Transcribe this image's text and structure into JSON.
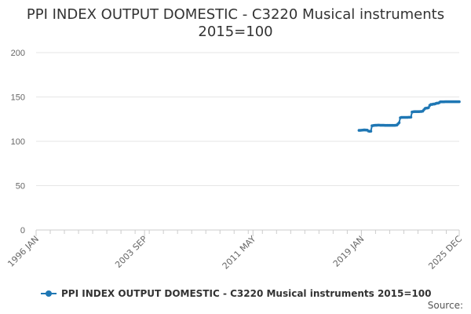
{
  "chart_data": {
    "type": "line",
    "title_lines": [
      "PPI INDEX OUTPUT DOMESTIC - C3220 Musical instruments",
      "2015=100"
    ],
    "ylim": [
      0,
      200
    ],
    "y_ticks": [
      0,
      50,
      100,
      150,
      200
    ],
    "x_range": [
      "1996-01",
      "2025-12"
    ],
    "x_ticks": [
      "1996 JAN",
      "2003 SEP",
      "2011 MAY",
      "2019 JAN",
      "2025 DEC"
    ],
    "grid": "horizontal",
    "legend_position": "bottom",
    "series": [
      {
        "name": "PPI INDEX OUTPUT DOMESTIC - C3220 Musical instruments 2015=100",
        "color": "#1f77b4",
        "points": [
          [
            "2018-11",
            112.3
          ],
          [
            "2018-12",
            112.4
          ],
          [
            "2019-01",
            112.5
          ],
          [
            "2019-02",
            112.6
          ],
          [
            "2019-03",
            112.8
          ],
          [
            "2019-04",
            112.8
          ],
          [
            "2019-05",
            112.7
          ],
          [
            "2019-06",
            112.6
          ],
          [
            "2019-07",
            111.5
          ],
          [
            "2019-08",
            111.3
          ],
          [
            "2019-09",
            111.4
          ],
          [
            "2019-10",
            117.5
          ],
          [
            "2019-11",
            117.8
          ],
          [
            "2019-12",
            118.0
          ],
          [
            "2020-01",
            118.1
          ],
          [
            "2020-02",
            118.1
          ],
          [
            "2020-03",
            118.2
          ],
          [
            "2020-04",
            118.2
          ],
          [
            "2020-05",
            118.1
          ],
          [
            "2020-06",
            118.1
          ],
          [
            "2020-07",
            118.1
          ],
          [
            "2020-08",
            118.1
          ],
          [
            "2020-09",
            118.0
          ],
          [
            "2020-10",
            118.0
          ],
          [
            "2020-11",
            118.0
          ],
          [
            "2020-12",
            118.0
          ],
          [
            "2021-01",
            118.0
          ],
          [
            "2021-02",
            118.0
          ],
          [
            "2021-03",
            118.0
          ],
          [
            "2021-04",
            118.0
          ],
          [
            "2021-05",
            118.0
          ],
          [
            "2021-06",
            118.1
          ],
          [
            "2021-07",
            118.3
          ],
          [
            "2021-08",
            119.5
          ],
          [
            "2021-09",
            121.0
          ],
          [
            "2021-10",
            126.5
          ],
          [
            "2021-11",
            127.0
          ],
          [
            "2021-12",
            127.0
          ],
          [
            "2022-01",
            127.0
          ],
          [
            "2022-02",
            127.0
          ],
          [
            "2022-03",
            127.0
          ],
          [
            "2022-04",
            127.0
          ],
          [
            "2022-05",
            127.1
          ],
          [
            "2022-06",
            127.1
          ],
          [
            "2022-07",
            127.2
          ],
          [
            "2022-08",
            133.0
          ],
          [
            "2022-09",
            133.3
          ],
          [
            "2022-10",
            133.5
          ],
          [
            "2022-11",
            133.5
          ],
          [
            "2022-12",
            133.5
          ],
          [
            "2023-01",
            133.5
          ],
          [
            "2023-02",
            133.5
          ],
          [
            "2023-03",
            133.6
          ],
          [
            "2023-04",
            133.6
          ],
          [
            "2023-05",
            134.0
          ],
          [
            "2023-06",
            135.5
          ],
          [
            "2023-07",
            137.0
          ],
          [
            "2023-08",
            137.5
          ],
          [
            "2023-09",
            137.5
          ],
          [
            "2023-10",
            138.0
          ],
          [
            "2023-11",
            140.5
          ],
          [
            "2023-12",
            141.5
          ],
          [
            "2024-01",
            141.5
          ],
          [
            "2024-02",
            142.0
          ],
          [
            "2024-03",
            142.0
          ],
          [
            "2024-04",
            142.5
          ],
          [
            "2024-05",
            143.0
          ],
          [
            "2024-06",
            143.0
          ],
          [
            "2024-07",
            143.5
          ],
          [
            "2024-08",
            144.5
          ],
          [
            "2024-09",
            144.5
          ],
          [
            "2024-10",
            144.5
          ],
          [
            "2024-11",
            144.5
          ],
          [
            "2024-12",
            144.6
          ],
          [
            "2025-01",
            144.6
          ],
          [
            "2025-02",
            144.6
          ],
          [
            "2025-03",
            144.6
          ],
          [
            "2025-04",
            144.6
          ],
          [
            "2025-05",
            144.6
          ],
          [
            "2025-06",
            144.6
          ],
          [
            "2025-07",
            144.6
          ],
          [
            "2025-08",
            144.6
          ],
          [
            "2025-09",
            144.6
          ],
          [
            "2025-10",
            144.6
          ],
          [
            "2025-11",
            144.6
          ],
          [
            "2025-12",
            144.6
          ]
        ]
      }
    ]
  },
  "source_label": "Source:",
  "colors": {
    "series": "#1f77b4",
    "grid": "#e6e6e6",
    "axis": "#cccccc"
  }
}
